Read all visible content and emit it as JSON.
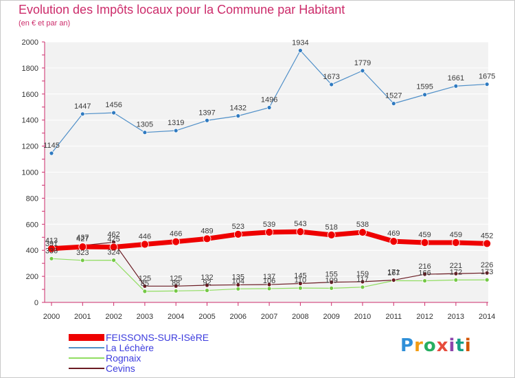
{
  "title": "Evolution des Impôts locaux pour la Commune par Habitant",
  "subtitle": "(en € et par an)",
  "logo": {
    "text": "Proxiti",
    "colors": [
      "#2f8fd8",
      "#f39c12",
      "#27ae60",
      "#e74c3c",
      "#8e44ad",
      "#16a085",
      "#d35400"
    ]
  },
  "chart_data": {
    "type": "line",
    "title": "Evolution des Impôts locaux pour la Commune par Habitant",
    "subtitle": "(en € et par an)",
    "x": [
      "2000",
      "2001",
      "2002",
      "2003",
      "2004",
      "2005",
      "2006",
      "2007",
      "2008",
      "2009",
      "2010",
      "2011",
      "2012",
      "2013",
      "2014"
    ],
    "ylim": [
      0,
      2000
    ],
    "yticks": [
      0,
      200,
      400,
      600,
      800,
      1000,
      1200,
      1400,
      1600,
      1800,
      2000
    ],
    "grid": true,
    "legend_position": "bottom-left",
    "series": [
      {
        "name": "La Léchère",
        "color": "#4f8fc8",
        "marker": "#2f7ac0",
        "width": 1.2,
        "values": [
          1145,
          1447,
          1456,
          1305,
          1319,
          1397,
          1432,
          1496,
          1934,
          1673,
          1779,
          1527,
          1595,
          1661,
          1675
        ]
      },
      {
        "name": "Rognaix",
        "color": "#90dd60",
        "marker": "#74c845",
        "width": 1.2,
        "values": [
          336,
          323,
          324,
          85,
          88,
          92,
          104,
          106,
          110,
          109,
          117,
          167,
          166,
          172,
          173
        ]
      },
      {
        "name": "Cevins",
        "color": "#6a1a22",
        "marker": "#6a1a22",
        "width": 1.2,
        "values": [
          391,
          437,
          462,
          125,
          125,
          132,
          135,
          137,
          145,
          155,
          159,
          171,
          216,
          221,
          226
        ]
      },
      {
        "name": "FEISSONS-SUR-ISèRE",
        "color": "#ee0000",
        "marker": "#ee0000",
        "width": 7,
        "values": [
          413,
          427,
          425,
          446,
          466,
          489,
          523,
          539,
          543,
          518,
          538,
          469,
          459,
          459,
          452
        ]
      }
    ],
    "data_labels": {
      "La Léchère": [
        "1145",
        "1447",
        "1456",
        "1305",
        "1319",
        "1397",
        "1432",
        "1496",
        "1934",
        "1673",
        "1779",
        "1527",
        "1595",
        "1661",
        "1675"
      ],
      "Rognaix": [
        "336",
        "323",
        "324",
        "85",
        "88",
        "92",
        "104",
        "106",
        "110",
        "109",
        "117",
        "167",
        "166",
        "172",
        "173"
      ],
      "Cevins": [
        "391",
        "437",
        "462",
        "125",
        "125",
        "132",
        "135",
        "137",
        "145",
        "155",
        "159",
        "171",
        "216",
        "221",
        "226"
      ],
      "FEISSONS-SUR-ISèRE": [
        "413",
        "427",
        "425",
        "446",
        "466",
        "489",
        "523",
        "539",
        "543",
        "518",
        "538",
        "469",
        "459",
        "459",
        "452"
      ]
    },
    "legend": [
      "FEISSONS-SUR-ISèRE",
      "La Léchère",
      "Rognaix",
      "Cevins"
    ]
  }
}
